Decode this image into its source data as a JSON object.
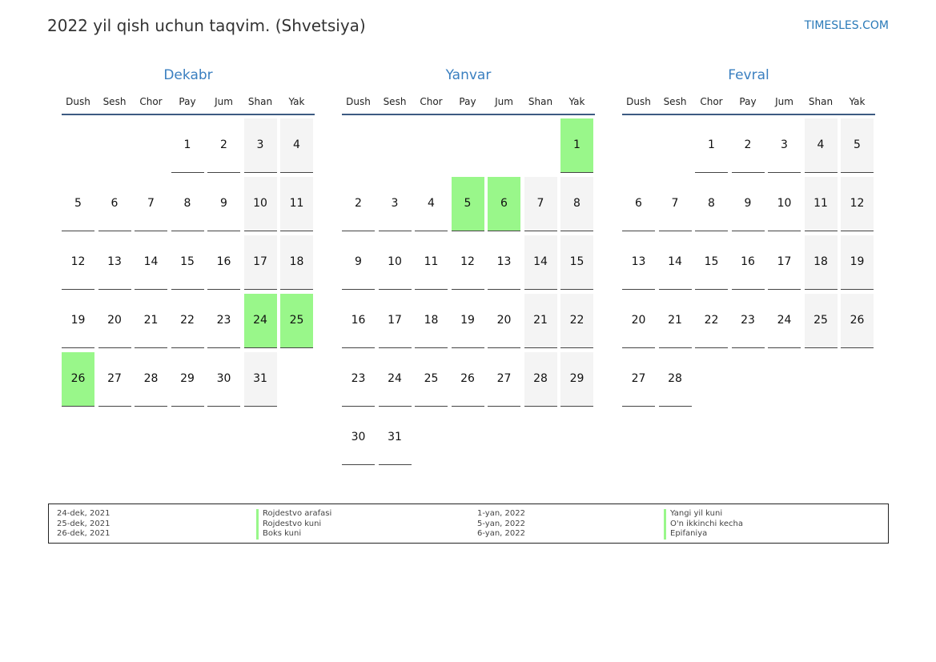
{
  "header": {
    "title": "2022 yil qish uchun taqvim. (Shvetsiya)",
    "brand": "TIMESLES.COM"
  },
  "weekdays": [
    "Dush",
    "Sesh",
    "Chor",
    "Pay",
    "Jum",
    "Shan",
    "Yak"
  ],
  "colors": {
    "holiday": "#99f78a",
    "weekend": "#f4f4f4",
    "month_title": "#3a7fc0"
  },
  "months": [
    {
      "name": "Dekabr",
      "first_weekday": 3,
      "days": 31,
      "holidays": [
        24,
        25,
        26
      ]
    },
    {
      "name": "Yanvar",
      "first_weekday": 6,
      "days": 31,
      "holidays": [
        1,
        5,
        6
      ]
    },
    {
      "name": "Fevral",
      "first_weekday": 2,
      "days": 28,
      "holidays": []
    }
  ],
  "legend": {
    "left": [
      {
        "date": "24-dek, 2021",
        "name": "Rojdestvo arafasi"
      },
      {
        "date": "25-dek, 2021",
        "name": "Rojdestvo kuni"
      },
      {
        "date": "26-dek, 2021",
        "name": "Boks kuni"
      }
    ],
    "right": [
      {
        "date": "1-yan, 2022",
        "name": "Yangi yil kuni"
      },
      {
        "date": "5-yan, 2022",
        "name": "O'n ikkinchi kecha"
      },
      {
        "date": "6-yan, 2022",
        "name": "Epifaniya"
      }
    ]
  }
}
